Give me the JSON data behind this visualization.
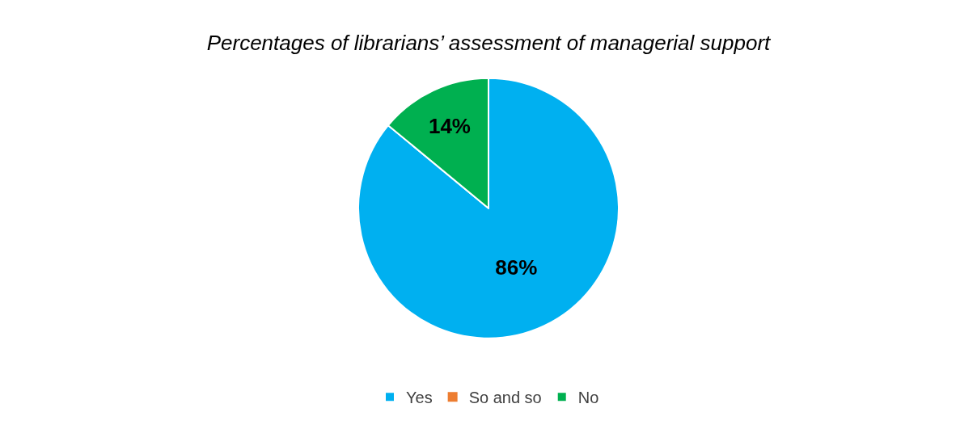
{
  "chart_data": {
    "type": "pie",
    "title": "Percentages of librarians’ assessment of managerial support",
    "categories": [
      "Yes",
      "So and so",
      "No"
    ],
    "values": [
      86,
      0,
      14
    ],
    "value_labels": [
      "86%",
      null,
      "14%"
    ],
    "colors": [
      "#00b0f0",
      "#ed7d31",
      "#00b050"
    ],
    "legend": "bottom"
  }
}
